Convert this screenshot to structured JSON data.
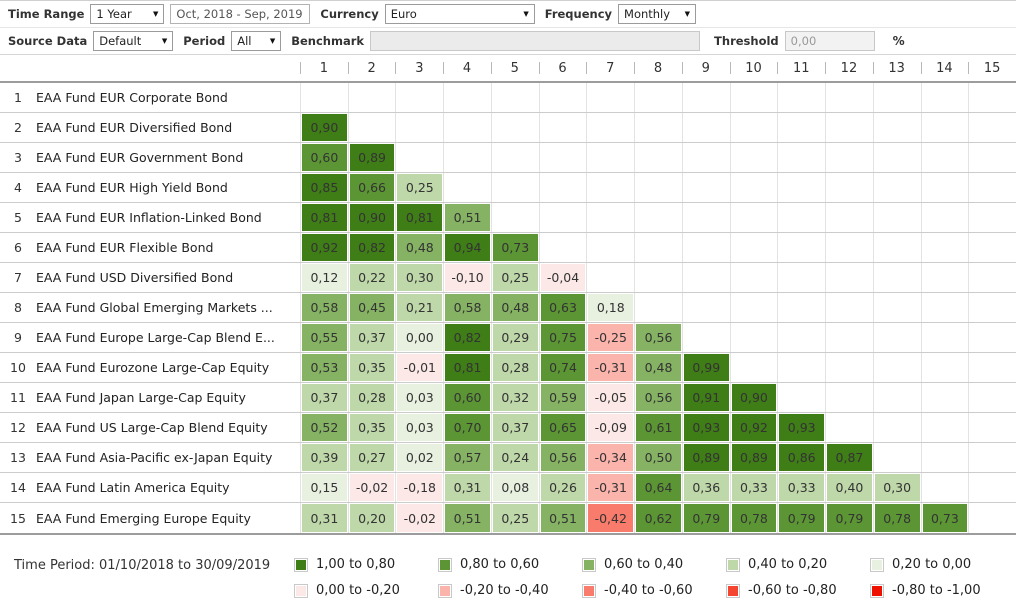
{
  "toolbar": {
    "time_range_label": "Time Range",
    "time_range_value": "1 Year",
    "date_range_value": "Oct, 2018 - Sep, 2019",
    "currency_label": "Currency",
    "currency_value": "Euro",
    "frequency_label": "Frequency",
    "frequency_value": "Monthly",
    "source_data_label": "Source Data",
    "source_data_value": "Default",
    "period_label": "Period",
    "period_value": "All",
    "benchmark_label": "Benchmark",
    "benchmark_value": "",
    "threshold_label": "Threshold",
    "threshold_value": "0,00",
    "threshold_unit": "%"
  },
  "legend": {
    "time_period": "Time Period: 01/10/2018 to 30/09/2019"
  },
  "chart_data": {
    "type": "heatmap",
    "title": "",
    "columns": [
      "1",
      "2",
      "3",
      "4",
      "5",
      "6",
      "7",
      "8",
      "9",
      "10",
      "11",
      "12",
      "13",
      "14",
      "15"
    ],
    "value_display": "comma decimal, 2 decimal places, lower triangle only",
    "rows": [
      {
        "index": "1",
        "name": "EAA Fund EUR Corporate Bond",
        "values": []
      },
      {
        "index": "2",
        "name": "EAA Fund EUR Diversified Bond",
        "values": [
          0.9
        ]
      },
      {
        "index": "3",
        "name": "EAA Fund EUR Government Bond",
        "values": [
          0.6,
          0.89
        ]
      },
      {
        "index": "4",
        "name": "EAA Fund EUR High Yield Bond",
        "values": [
          0.85,
          0.66,
          0.25
        ]
      },
      {
        "index": "5",
        "name": "EAA Fund EUR Inflation-Linked Bond",
        "values": [
          0.81,
          0.9,
          0.81,
          0.51
        ]
      },
      {
        "index": "6",
        "name": "EAA Fund EUR Flexible Bond",
        "values": [
          0.92,
          0.82,
          0.48,
          0.94,
          0.73
        ]
      },
      {
        "index": "7",
        "name": "EAA Fund USD Diversified Bond",
        "values": [
          0.12,
          0.22,
          0.3,
          -0.1,
          0.25,
          -0.04
        ]
      },
      {
        "index": "8",
        "name": "EAA Fund Global Emerging Markets ...",
        "values": [
          0.58,
          0.45,
          0.21,
          0.58,
          0.48,
          0.63,
          0.18
        ]
      },
      {
        "index": "9",
        "name": "EAA Fund Europe Large-Cap Blend E...",
        "values": [
          0.55,
          0.37,
          0.0,
          0.82,
          0.29,
          0.75,
          -0.25,
          0.56
        ]
      },
      {
        "index": "10",
        "name": "EAA Fund Eurozone Large-Cap Equity",
        "values": [
          0.53,
          0.35,
          -0.01,
          0.81,
          0.28,
          0.74,
          -0.31,
          0.48,
          0.99
        ]
      },
      {
        "index": "11",
        "name": "EAA Fund Japan Large-Cap Equity",
        "values": [
          0.37,
          0.28,
          0.03,
          0.6,
          0.32,
          0.59,
          -0.05,
          0.56,
          0.91,
          0.9
        ]
      },
      {
        "index": "12",
        "name": "EAA Fund US Large-Cap Blend Equity",
        "values": [
          0.52,
          0.35,
          0.03,
          0.7,
          0.37,
          0.65,
          -0.09,
          0.61,
          0.93,
          0.92,
          0.93
        ]
      },
      {
        "index": "13",
        "name": "EAA Fund Asia-Pacific ex-Japan Equity",
        "values": [
          0.39,
          0.27,
          0.02,
          0.57,
          0.24,
          0.56,
          -0.34,
          0.5,
          0.89,
          0.89,
          0.86,
          0.87
        ]
      },
      {
        "index": "14",
        "name": "EAA Fund Latin America Equity",
        "values": [
          0.15,
          -0.02,
          -0.18,
          0.31,
          0.08,
          0.26,
          -0.31,
          0.64,
          0.36,
          0.33,
          0.33,
          0.3999,
          0.3
        ]
      },
      {
        "index": "15",
        "name": "EAA Fund Emerging Europe Equity",
        "values": [
          0.31,
          0.2,
          -0.02,
          0.51,
          0.25,
          0.51,
          -0.42,
          0.62,
          0.79,
          0.78,
          0.79,
          0.79,
          0.78,
          0.73
        ]
      }
    ],
    "color_bands": [
      {
        "label": "1,00 to 0,80",
        "min": 0.8,
        "color": "#3F7D17"
      },
      {
        "label": "0,80 to 0,60",
        "min": 0.6,
        "color": "#5C9634"
      },
      {
        "label": "0,60 to 0,40",
        "min": 0.4,
        "color": "#86B363"
      },
      {
        "label": "0,40 to 0,20",
        "min": 0.2,
        "color": "#BFD8AA"
      },
      {
        "label": "0,20 to 0,00",
        "min": 0.0,
        "color": "#E8F1E0"
      },
      {
        "label": "0,00 to -0,20",
        "min": -0.2,
        "color": "#FCE9E7"
      },
      {
        "label": "-0,20 to -0,40",
        "min": -0.4,
        "color": "#FBB4AC"
      },
      {
        "label": "-0,40 to -0,60",
        "min": -0.6,
        "color": "#F87B6B"
      },
      {
        "label": "-0,60 to -0,80",
        "min": -0.8,
        "color": "#F44530"
      },
      {
        "label": "-0,80 to -1,00",
        "min": -1.0,
        "color": "#EE1100"
      }
    ]
  }
}
